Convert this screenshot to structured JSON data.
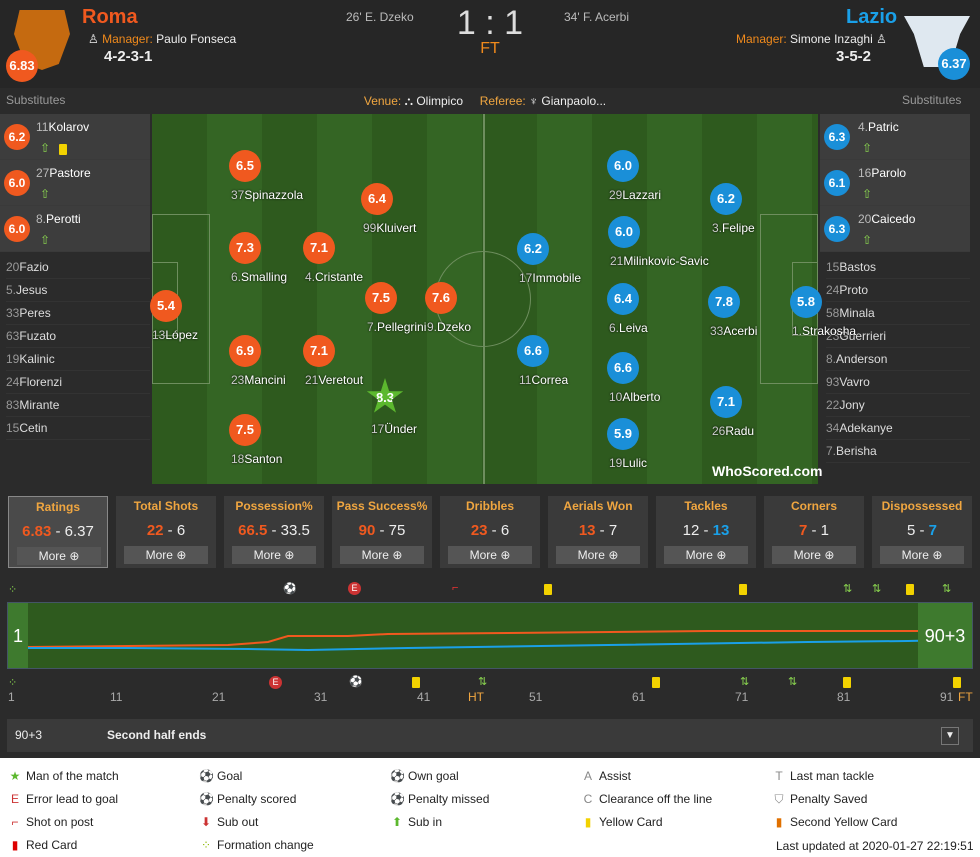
{
  "home": {
    "name": "Roma",
    "rating": "6.83",
    "manager_label": "Manager:",
    "manager": "Paulo Fonseca",
    "formation": "4-2-3-1",
    "scorer": "26' E. Dzeko"
  },
  "away": {
    "name": "Lazio",
    "rating": "6.37",
    "manager_label": "Manager:",
    "manager": "Simone Inzaghi",
    "formation": "3-5-2",
    "scorer": "34' F. Acerbi"
  },
  "score": "1 : 1",
  "status": "FT",
  "substitutes_label": "Substitutes",
  "venue_label": "Venue:",
  "venue": "Olimpico",
  "referee_label": "Referee:",
  "referee": "Gianpaolo...",
  "home_players": [
    {
      "num": "37",
      "name": "Spinazzola",
      "rating": "6.5"
    },
    {
      "num": "99",
      "name": "Kluivert",
      "rating": "6.4"
    },
    {
      "num": "6.",
      "name": "Smalling",
      "rating": "7.3"
    },
    {
      "num": "4.",
      "name": "Cristante",
      "rating": "7.1"
    },
    {
      "num": "13",
      "name": "López",
      "rating": "5.4"
    },
    {
      "num": "7.",
      "name": "Pellegrini",
      "rating": "7.5"
    },
    {
      "num": "9.",
      "name": "Dzeko",
      "rating": "7.6"
    },
    {
      "num": "23",
      "name": "Mancini",
      "rating": "6.9"
    },
    {
      "num": "21",
      "name": "Veretout",
      "rating": "7.1"
    },
    {
      "num": "17",
      "name": "Ünder",
      "rating": "8.3"
    },
    {
      "num": "18",
      "name": "Santon",
      "rating": "7.5"
    }
  ],
  "away_players": [
    {
      "num": "29",
      "name": "Lazzari",
      "rating": "6.0"
    },
    {
      "num": "3.",
      "name": "Felipe",
      "rating": "6.2"
    },
    {
      "num": "17",
      "name": "Immobile",
      "rating": "6.2"
    },
    {
      "num": "21",
      "name": "Milinkovic-Savic",
      "rating": "6.0"
    },
    {
      "num": "6.",
      "name": "Leiva",
      "rating": "6.4"
    },
    {
      "num": "33",
      "name": "Acerbi",
      "rating": "7.8"
    },
    {
      "num": "1.",
      "name": "Strakosha",
      "rating": "5.8"
    },
    {
      "num": "11",
      "name": "Correa",
      "rating": "6.6"
    },
    {
      "num": "10",
      "name": "Alberto",
      "rating": "6.6"
    },
    {
      "num": "26",
      "name": "Radu",
      "rating": "7.1"
    },
    {
      "num": "19",
      "name": "Lulic",
      "rating": "5.9"
    }
  ],
  "home_subs": [
    {
      "num": "11",
      "name": "Kolarov",
      "rating": "6.2"
    },
    {
      "num": "27",
      "name": "Pastore",
      "rating": "6.0"
    },
    {
      "num": "8.",
      "name": "Perotti",
      "rating": "6.0"
    }
  ],
  "away_subs": [
    {
      "num": "4.",
      "name": "Patric",
      "rating": "6.3"
    },
    {
      "num": "16",
      "name": "Parolo",
      "rating": "6.1"
    },
    {
      "num": "20",
      "name": "Caicedo",
      "rating": "6.3"
    }
  ],
  "home_bench": [
    {
      "num": "20",
      "name": "Fazio"
    },
    {
      "num": "5.",
      "name": "Jesus"
    },
    {
      "num": "33",
      "name": "Peres"
    },
    {
      "num": "63",
      "name": "Fuzato"
    },
    {
      "num": "19",
      "name": "Kalinic"
    },
    {
      "num": "24",
      "name": "Florenzi"
    },
    {
      "num": "83",
      "name": "Mirante"
    },
    {
      "num": "15",
      "name": "Cetin"
    }
  ],
  "away_bench": [
    {
      "num": "15",
      "name": "Bastos"
    },
    {
      "num": "24",
      "name": "Proto"
    },
    {
      "num": "58",
      "name": "Minala"
    },
    {
      "num": "23",
      "name": "Guerrieri"
    },
    {
      "num": "8.",
      "name": "Anderson"
    },
    {
      "num": "93",
      "name": "Vavro"
    },
    {
      "num": "22",
      "name": "Jony"
    },
    {
      "num": "34",
      "name": "Adekanye"
    },
    {
      "num": "7.",
      "name": "Berisha"
    }
  ],
  "watermark": "WhoScored.com",
  "stats": [
    {
      "title": "Ratings",
      "home": "6.83",
      "away": "6.37",
      "leader": "home"
    },
    {
      "title": "Total Shots",
      "home": "22",
      "away": "6",
      "leader": "home"
    },
    {
      "title": "Possession%",
      "home": "66.5",
      "away": "33.5",
      "leader": "home"
    },
    {
      "title": "Pass Success%",
      "home": "90",
      "away": "75",
      "leader": "home"
    },
    {
      "title": "Dribbles",
      "home": "23",
      "away": "6",
      "leader": "home"
    },
    {
      "title": "Aerials Won",
      "home": "13",
      "away": "7",
      "leader": "home"
    },
    {
      "title": "Tackles",
      "home": "12",
      "away": "13",
      "leader": "away"
    },
    {
      "title": "Corners",
      "home": "7",
      "away": "1",
      "leader": "home"
    },
    {
      "title": "Dispossessed",
      "home": "5",
      "away": "7",
      "leader": "away"
    }
  ],
  "more_label": "More",
  "timeline": {
    "start": "1",
    "end": "90+3",
    "ticks": [
      "1",
      "11",
      "21",
      "31",
      "41",
      "HT",
      "51",
      "61",
      "71",
      "81",
      "91",
      "FT"
    ]
  },
  "event": {
    "minute": "90+3",
    "text": "Second half ends"
  },
  "legend": [
    "Man of the match",
    "Goal",
    "Own goal",
    "Assist",
    "Last man tackle",
    "Error lead to goal",
    "Penalty scored",
    "Penalty missed",
    "Clearance off the line",
    "Penalty Saved",
    "Shot on post",
    "Sub out",
    "Sub in",
    "Yellow Card",
    "Second Yellow Card",
    "Red Card",
    "Formation change"
  ],
  "last_updated": "Last updated at 2020-01-27 22:19:51",
  "colors": {
    "home": "#f0591f",
    "away": "#1a8fd8",
    "accent": "#f0a640"
  }
}
